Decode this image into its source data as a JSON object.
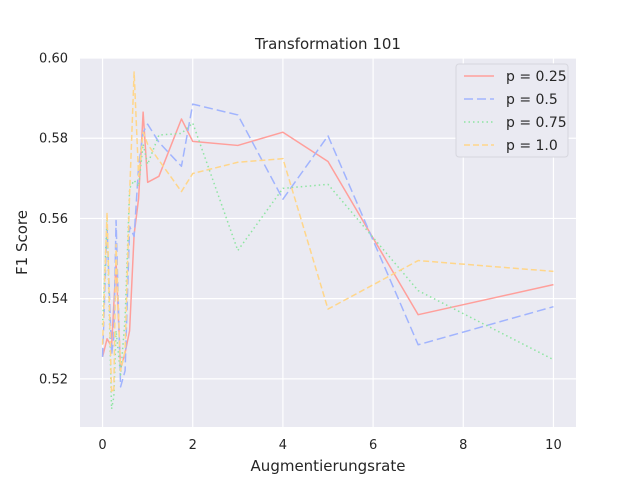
{
  "chart_data": {
    "type": "line",
    "title": "Transformation 101",
    "xlabel": "Augmentierungsrate",
    "ylabel": "F1 Score",
    "xlim": [
      -0.5,
      10.5
    ],
    "ylim": [
      0.508,
      0.6
    ],
    "xticks": [
      0,
      2,
      4,
      6,
      8,
      10
    ],
    "xtick_labels": [
      "0",
      "2",
      "4",
      "6",
      "8",
      "10"
    ],
    "yticks": [
      0.52,
      0.54,
      0.56,
      0.58,
      0.6
    ],
    "ytick_labels": [
      "0.52",
      "0.54",
      "0.56",
      "0.58",
      "0.60"
    ],
    "grid": true,
    "legend": "top-right",
    "series": [
      {
        "name": "p = 0.25",
        "color": "#ff9f9b",
        "dash": "solid",
        "x": [
          0,
          0.1,
          0.2,
          0.3,
          0.4,
          0.5,
          0.6,
          0.7,
          0.8,
          0.9,
          1.0,
          1.25,
          1.75,
          2,
          3,
          4,
          5,
          7,
          10
        ],
        "y": [
          0.5255,
          0.53,
          0.528,
          0.549,
          0.5225,
          0.5265,
          0.532,
          0.556,
          0.565,
          0.5865,
          0.569,
          0.5705,
          0.5848,
          0.5792,
          0.5782,
          0.5815,
          0.5742,
          0.536,
          0.5435
        ]
      },
      {
        "name": "p = 0.5",
        "color": "#a1b4fe",
        "dash": "long-dash",
        "x": [
          0,
          0.1,
          0.2,
          0.25,
          0.3,
          0.4,
          0.5,
          0.6,
          0.7,
          0.8,
          0.9,
          1.0,
          1.25,
          1.75,
          2,
          3,
          4,
          5,
          7,
          10
        ],
        "y": [
          0.5255,
          0.558,
          0.526,
          0.5305,
          0.5595,
          0.518,
          0.522,
          0.558,
          0.5555,
          0.573,
          0.5815,
          0.5835,
          0.579,
          0.573,
          0.5885,
          0.5858,
          0.5648,
          0.5806,
          0.5285,
          0.538
        ]
      },
      {
        "name": "p = 0.75",
        "color": "#8de5a1",
        "dash": "dotted",
        "x": [
          0,
          0.1,
          0.2,
          0.25,
          0.3,
          0.4,
          0.5,
          0.6,
          0.7,
          0.8,
          0.9,
          1.0,
          1.25,
          1.75,
          2,
          3,
          4,
          5,
          7,
          10
        ],
        "y": [
          0.5335,
          0.56,
          0.5125,
          0.5155,
          0.532,
          0.521,
          0.535,
          0.5675,
          0.5695,
          0.568,
          0.5785,
          0.5735,
          0.5808,
          0.5812,
          0.5838,
          0.552,
          0.5675,
          0.5685,
          0.542,
          0.5248
        ]
      },
      {
        "name": "p = 1.0",
        "color": "#ffd68a",
        "dash": "dashed",
        "x": [
          0,
          0.1,
          0.2,
          0.25,
          0.3,
          0.4,
          0.5,
          0.6,
          0.7,
          0.8,
          0.9,
          1.0,
          1.25,
          1.75,
          2,
          3,
          4,
          5,
          7,
          10
        ],
        "y": [
          0.5285,
          0.5615,
          0.5165,
          0.5175,
          0.5535,
          0.522,
          0.527,
          0.566,
          0.5965,
          0.5705,
          0.5815,
          0.5785,
          0.5745,
          0.5667,
          0.5712,
          0.574,
          0.5749,
          0.5374,
          0.5495,
          0.5468
        ]
      }
    ]
  },
  "style": {
    "plot_background": "#eaeaf2",
    "grid_color": "#ffffff",
    "text_color": "#262626"
  }
}
